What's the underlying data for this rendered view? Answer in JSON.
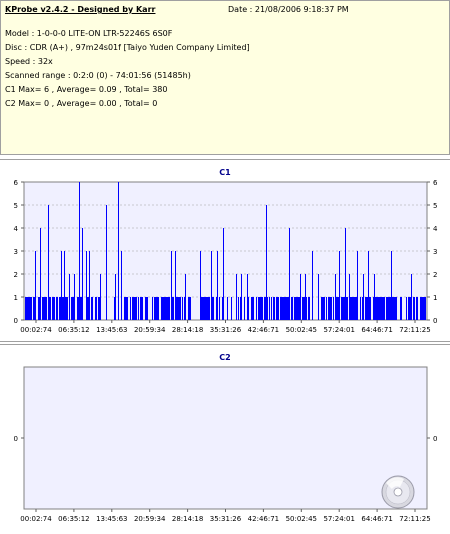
{
  "info": {
    "title": "KProbe v2.4.2 - Designed by Karr",
    "date": "Date : 21/08/2006 9:18:37 PM",
    "model": "Model : 1-0-0-0 LITE-ON LTR-52246S        6S0F",
    "disc": "Disc : CDR (A+) , 97m24s01f [Taiyo Yuden Company Limited]",
    "speed": "Speed : 32x",
    "scanned_range": "Scanned range : 0:2:0 (0) - 74:01:56 (51485h)",
    "c1_summary": "C1 Max= 6 , Average= 0.09 , Total= 380",
    "c2_summary": "C2 Max= 0 , Average= 0.00 , Total= 0"
  },
  "colors": {
    "bar": "#0000ff",
    "plot_bg": "#f0f0ff",
    "grid": "#a0a0a0",
    "title": "#00008b"
  },
  "chart_data": [
    {
      "type": "bar",
      "title": "C1",
      "x_tick_labels": [
        "00:02:74",
        "06:35:12",
        "13:45:63",
        "20:59:34",
        "28:14:18",
        "35:31:26",
        "42:46:71",
        "50:02:45",
        "57:24:01",
        "64:46:71",
        "72:11:25"
      ],
      "x_range": [
        0,
        74.05
      ],
      "ylim": [
        0,
        6
      ],
      "y_ticks": [
        0,
        1,
        2,
        3,
        4,
        5,
        6
      ],
      "grid": true,
      "baseline_one_ranges": [
        [
          0.2,
          12.5
        ],
        [
          13.0,
          14.8
        ],
        [
          16.2,
          16.9
        ],
        [
          18.4,
          30.8
        ],
        [
          32.6,
          38.1
        ],
        [
          39.4,
          39.8
        ],
        [
          40.3,
          52.7
        ],
        [
          53.6,
          73.8
        ]
      ],
      "spikes": [
        {
          "x": 2.1,
          "v": 3
        },
        {
          "x": 3.0,
          "v": 4
        },
        {
          "x": 4.5,
          "v": 5
        },
        {
          "x": 6.8,
          "v": 3
        },
        {
          "x": 7.4,
          "v": 3
        },
        {
          "x": 8.3,
          "v": 2
        },
        {
          "x": 9.2,
          "v": 2
        },
        {
          "x": 10.1,
          "v": 6
        },
        {
          "x": 10.6,
          "v": 4
        },
        {
          "x": 11.4,
          "v": 3
        },
        {
          "x": 12.0,
          "v": 3
        },
        {
          "x": 13.9,
          "v": 2
        },
        {
          "x": 15.1,
          "v": 5
        },
        {
          "x": 16.8,
          "v": 2
        },
        {
          "x": 17.3,
          "v": 6
        },
        {
          "x": 17.9,
          "v": 3
        },
        {
          "x": 27.1,
          "v": 3
        },
        {
          "x": 27.7,
          "v": 3
        },
        {
          "x": 29.6,
          "v": 2
        },
        {
          "x": 32.3,
          "v": 3
        },
        {
          "x": 34.4,
          "v": 3
        },
        {
          "x": 35.4,
          "v": 3
        },
        {
          "x": 36.6,
          "v": 4
        },
        {
          "x": 39.0,
          "v": 2
        },
        {
          "x": 39.9,
          "v": 2
        },
        {
          "x": 40.9,
          "v": 2
        },
        {
          "x": 44.4,
          "v": 5
        },
        {
          "x": 48.7,
          "v": 4
        },
        {
          "x": 50.8,
          "v": 2
        },
        {
          "x": 51.6,
          "v": 2
        },
        {
          "x": 52.9,
          "v": 3
        },
        {
          "x": 54.0,
          "v": 2
        },
        {
          "x": 57.2,
          "v": 2
        },
        {
          "x": 57.8,
          "v": 3
        },
        {
          "x": 58.9,
          "v": 4
        },
        {
          "x": 59.8,
          "v": 2
        },
        {
          "x": 61.1,
          "v": 3
        },
        {
          "x": 62.2,
          "v": 2
        },
        {
          "x": 63.2,
          "v": 3
        },
        {
          "x": 64.3,
          "v": 2
        },
        {
          "x": 67.5,
          "v": 3
        },
        {
          "x": 71.1,
          "v": 2
        }
      ]
    },
    {
      "type": "bar",
      "title": "C2",
      "x_tick_labels": [
        "00:02:74",
        "06:35:12",
        "13:45:63",
        "20:59:34",
        "28:14:18",
        "35:31:26",
        "42:46:71",
        "50:02:45",
        "57:24:01",
        "64:46:71",
        "72:11:25"
      ],
      "x_range": [
        0,
        74.05
      ],
      "ylim": [
        -1,
        1
      ],
      "y_ticks": [
        0
      ],
      "grid": false,
      "values": []
    }
  ]
}
